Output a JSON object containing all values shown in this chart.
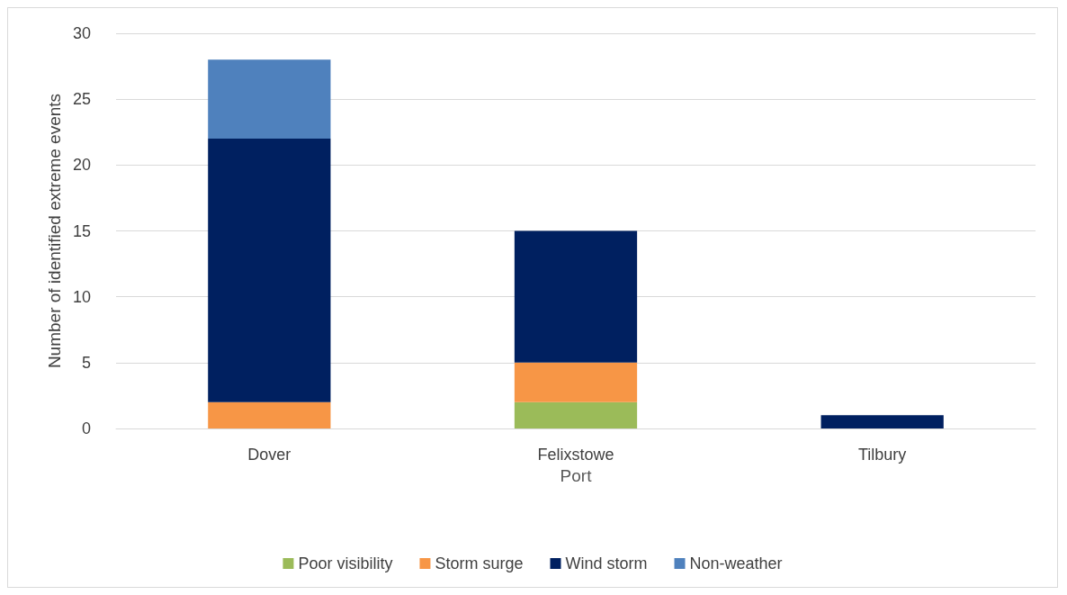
{
  "chart_data": {
    "type": "bar",
    "stacked": true,
    "xlabel": "Port",
    "ylabel": "Number of identified extreme events",
    "categories": [
      "Dover",
      "Felixstowe",
      "Tilbury"
    ],
    "series": [
      {
        "name": "Poor visibility",
        "color": "#9bbb59",
        "values": [
          0,
          2,
          0
        ]
      },
      {
        "name": "Storm surge",
        "color": "#f79646",
        "values": [
          2,
          3,
          0
        ]
      },
      {
        "name": "Wind storm",
        "color": "#002060",
        "values": [
          20,
          10,
          1
        ]
      },
      {
        "name": "Non-weather",
        "color": "#4f81bd",
        "values": [
          6,
          0,
          0
        ]
      }
    ],
    "ylim": [
      0,
      30
    ],
    "yticks": [
      0,
      5,
      10,
      15,
      20,
      25,
      30
    ],
    "grid": "y",
    "legend": "bottom"
  }
}
